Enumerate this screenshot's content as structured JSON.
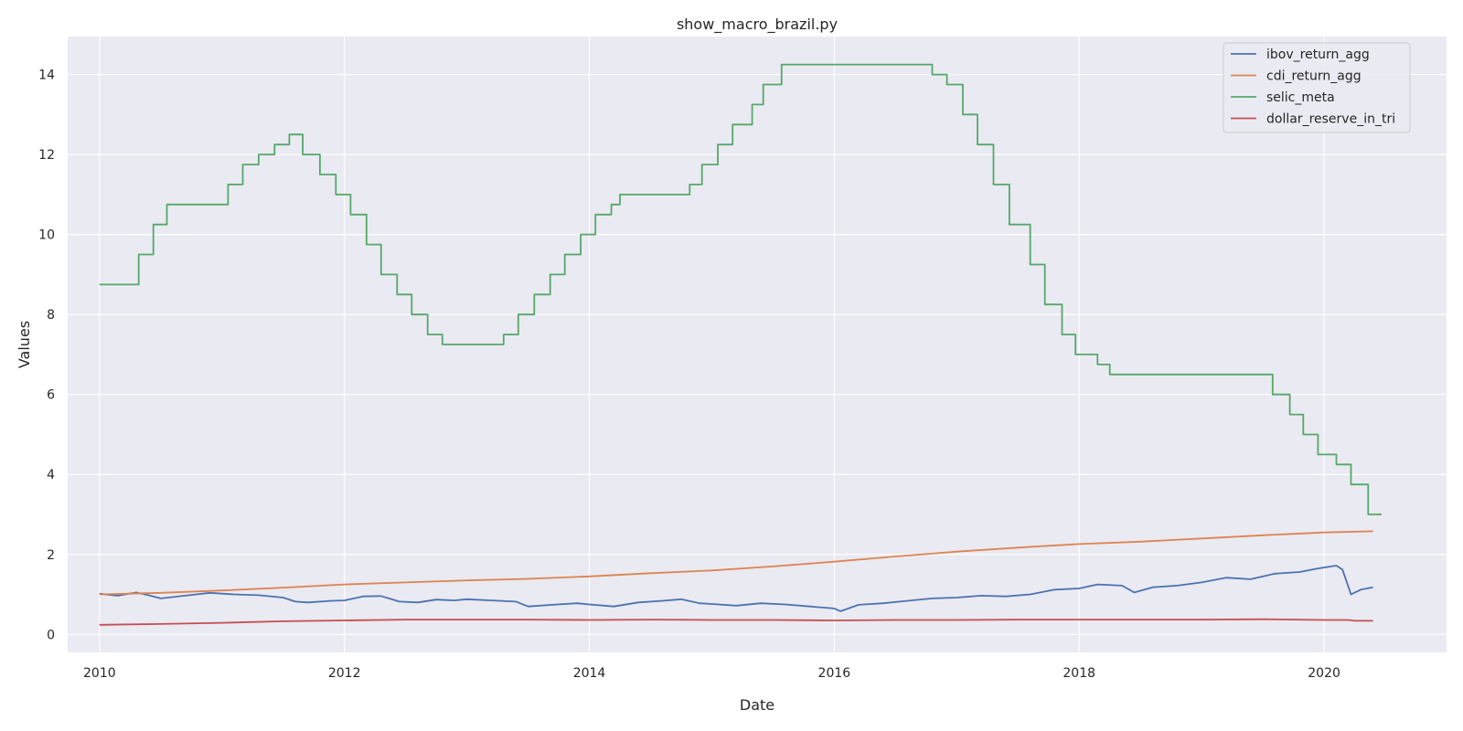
{
  "chart_data": {
    "type": "line",
    "title": "show_macro_brazil.py",
    "xlabel": "Date",
    "ylabel": "Values",
    "xlim": [
      2009.74,
      2021.0
    ],
    "ylim": [
      -0.45,
      14.95
    ],
    "x_ticks": [
      2010,
      2012,
      2014,
      2016,
      2018,
      2020
    ],
    "x_tick_labels": [
      "2010",
      "2012",
      "2014",
      "2016",
      "2018",
      "2020"
    ],
    "y_ticks": [
      0,
      2,
      4,
      6,
      8,
      10,
      12,
      14
    ],
    "y_tick_labels": [
      "0",
      "2",
      "4",
      "6",
      "8",
      "10",
      "12",
      "14"
    ],
    "grid": true,
    "legend_position": "top-right",
    "colors": {
      "background": "#eaeaf2",
      "grid": "#ffffff",
      "text": "#262626"
    },
    "series": [
      {
        "name": "ibov_return_agg",
        "color": "#4c72b0",
        "style": "line",
        "points": [
          [
            2010.0,
            1.02
          ],
          [
            2010.15,
            0.97
          ],
          [
            2010.3,
            1.05
          ],
          [
            2010.4,
            0.98
          ],
          [
            2010.5,
            0.9
          ],
          [
            2010.7,
            0.97
          ],
          [
            2010.9,
            1.04
          ],
          [
            2011.1,
            1.0
          ],
          [
            2011.3,
            0.98
          ],
          [
            2011.5,
            0.92
          ],
          [
            2011.6,
            0.82
          ],
          [
            2011.7,
            0.8
          ],
          [
            2011.9,
            0.84
          ],
          [
            2012.0,
            0.85
          ],
          [
            2012.15,
            0.95
          ],
          [
            2012.3,
            0.96
          ],
          [
            2012.45,
            0.82
          ],
          [
            2012.6,
            0.8
          ],
          [
            2012.75,
            0.87
          ],
          [
            2012.9,
            0.85
          ],
          [
            2013.0,
            0.88
          ],
          [
            2013.2,
            0.85
          ],
          [
            2013.4,
            0.82
          ],
          [
            2013.5,
            0.7
          ],
          [
            2013.7,
            0.74
          ],
          [
            2013.9,
            0.78
          ],
          [
            2014.0,
            0.75
          ],
          [
            2014.2,
            0.7
          ],
          [
            2014.4,
            0.8
          ],
          [
            2014.6,
            0.84
          ],
          [
            2014.75,
            0.88
          ],
          [
            2014.9,
            0.78
          ],
          [
            2015.0,
            0.76
          ],
          [
            2015.2,
            0.72
          ],
          [
            2015.4,
            0.78
          ],
          [
            2015.6,
            0.75
          ],
          [
            2015.8,
            0.7
          ],
          [
            2016.0,
            0.65
          ],
          [
            2016.05,
            0.58
          ],
          [
            2016.2,
            0.74
          ],
          [
            2016.4,
            0.78
          ],
          [
            2016.6,
            0.84
          ],
          [
            2016.8,
            0.9
          ],
          [
            2017.0,
            0.92
          ],
          [
            2017.2,
            0.97
          ],
          [
            2017.4,
            0.95
          ],
          [
            2017.6,
            1.0
          ],
          [
            2017.8,
            1.12
          ],
          [
            2018.0,
            1.15
          ],
          [
            2018.15,
            1.25
          ],
          [
            2018.35,
            1.22
          ],
          [
            2018.45,
            1.05
          ],
          [
            2018.6,
            1.18
          ],
          [
            2018.8,
            1.22
          ],
          [
            2019.0,
            1.3
          ],
          [
            2019.2,
            1.42
          ],
          [
            2019.4,
            1.38
          ],
          [
            2019.6,
            1.52
          ],
          [
            2019.8,
            1.56
          ],
          [
            2019.95,
            1.65
          ],
          [
            2020.1,
            1.72
          ],
          [
            2020.15,
            1.62
          ],
          [
            2020.22,
            1.0
          ],
          [
            2020.3,
            1.12
          ],
          [
            2020.4,
            1.18
          ]
        ]
      },
      {
        "name": "cdi_return_agg",
        "color": "#dd8452",
        "style": "line",
        "points": [
          [
            2010.0,
            1.0
          ],
          [
            2010.5,
            1.04
          ],
          [
            2011.0,
            1.1
          ],
          [
            2011.5,
            1.17
          ],
          [
            2012.0,
            1.25
          ],
          [
            2012.5,
            1.3
          ],
          [
            2013.0,
            1.35
          ],
          [
            2013.5,
            1.39
          ],
          [
            2014.0,
            1.45
          ],
          [
            2014.5,
            1.53
          ],
          [
            2015.0,
            1.6
          ],
          [
            2015.5,
            1.7
          ],
          [
            2016.0,
            1.82
          ],
          [
            2016.5,
            1.95
          ],
          [
            2017.0,
            2.07
          ],
          [
            2017.5,
            2.17
          ],
          [
            2018.0,
            2.26
          ],
          [
            2018.5,
            2.32
          ],
          [
            2019.0,
            2.4
          ],
          [
            2019.5,
            2.48
          ],
          [
            2020.0,
            2.55
          ],
          [
            2020.4,
            2.58
          ]
        ]
      },
      {
        "name": "selic_meta",
        "color": "#55a868",
        "style": "step",
        "points": [
          [
            2010.0,
            8.75
          ],
          [
            2010.32,
            9.5
          ],
          [
            2010.44,
            10.25
          ],
          [
            2010.55,
            10.75
          ],
          [
            2011.05,
            11.25
          ],
          [
            2011.17,
            11.75
          ],
          [
            2011.3,
            12.0
          ],
          [
            2011.43,
            12.25
          ],
          [
            2011.55,
            12.5
          ],
          [
            2011.66,
            12.0
          ],
          [
            2011.8,
            11.5
          ],
          [
            2011.93,
            11.0
          ],
          [
            2012.05,
            10.5
          ],
          [
            2012.18,
            9.75
          ],
          [
            2012.3,
            9.0
          ],
          [
            2012.43,
            8.5
          ],
          [
            2012.55,
            8.0
          ],
          [
            2012.68,
            7.5
          ],
          [
            2012.8,
            7.25
          ],
          [
            2013.3,
            7.5
          ],
          [
            2013.42,
            8.0
          ],
          [
            2013.55,
            8.5
          ],
          [
            2013.68,
            9.0
          ],
          [
            2013.8,
            9.5
          ],
          [
            2013.93,
            10.0
          ],
          [
            2014.05,
            10.5
          ],
          [
            2014.18,
            10.75
          ],
          [
            2014.25,
            11.0
          ],
          [
            2014.82,
            11.25
          ],
          [
            2014.92,
            11.75
          ],
          [
            2015.05,
            12.25
          ],
          [
            2015.17,
            12.75
          ],
          [
            2015.33,
            13.25
          ],
          [
            2015.42,
            13.75
          ],
          [
            2015.57,
            14.25
          ],
          [
            2016.8,
            14.0
          ],
          [
            2016.92,
            13.75
          ],
          [
            2017.05,
            13.0
          ],
          [
            2017.17,
            12.25
          ],
          [
            2017.3,
            11.25
          ],
          [
            2017.43,
            10.25
          ],
          [
            2017.6,
            9.25
          ],
          [
            2017.72,
            8.25
          ],
          [
            2017.86,
            7.5
          ],
          [
            2017.97,
            7.0
          ],
          [
            2018.15,
            6.75
          ],
          [
            2018.25,
            6.5
          ],
          [
            2019.58,
            6.0
          ],
          [
            2019.72,
            5.5
          ],
          [
            2019.83,
            5.0
          ],
          [
            2019.95,
            4.5
          ],
          [
            2020.1,
            4.25
          ],
          [
            2020.22,
            3.75
          ],
          [
            2020.36,
            3.0
          ],
          [
            2020.47,
            3.0
          ]
        ]
      },
      {
        "name": "dollar_reserve_in_tri",
        "color": "#c44e52",
        "style": "line",
        "points": [
          [
            2010.0,
            0.24
          ],
          [
            2010.5,
            0.26
          ],
          [
            2011.0,
            0.29
          ],
          [
            2011.5,
            0.33
          ],
          [
            2012.0,
            0.35
          ],
          [
            2012.5,
            0.37
          ],
          [
            2013.0,
            0.37
          ],
          [
            2013.5,
            0.37
          ],
          [
            2014.0,
            0.36
          ],
          [
            2014.5,
            0.37
          ],
          [
            2015.0,
            0.36
          ],
          [
            2015.5,
            0.36
          ],
          [
            2016.0,
            0.35
          ],
          [
            2016.5,
            0.36
          ],
          [
            2017.0,
            0.36
          ],
          [
            2017.5,
            0.37
          ],
          [
            2018.0,
            0.37
          ],
          [
            2018.5,
            0.37
          ],
          [
            2019.0,
            0.37
          ],
          [
            2019.5,
            0.38
          ],
          [
            2020.0,
            0.36
          ],
          [
            2020.2,
            0.36
          ],
          [
            2020.25,
            0.34
          ],
          [
            2020.4,
            0.34
          ]
        ]
      }
    ]
  }
}
